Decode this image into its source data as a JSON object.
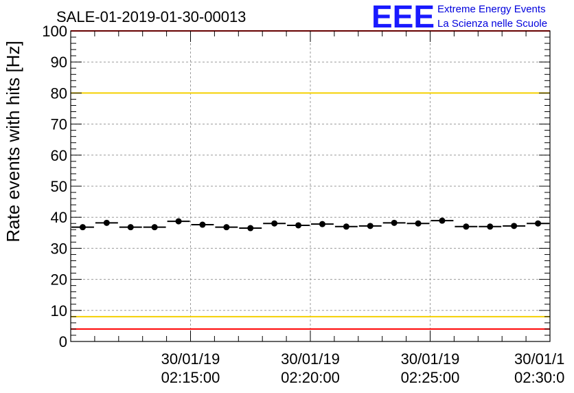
{
  "chart_data": {
    "type": "scatter",
    "title": "SALE-01-2019-01-30-00013",
    "xlabel": "",
    "ylabel": "Rate events with hits [Hz]",
    "ylim": [
      0,
      100
    ],
    "yticks": [
      "0",
      "10",
      "20",
      "30",
      "40",
      "50",
      "60",
      "70",
      "80",
      "90",
      "100"
    ],
    "x_range_minutes": [
      0,
      20
    ],
    "xtick_labels": [
      {
        "date": "30/01/19",
        "time": "02:15:00",
        "minute": 5
      },
      {
        "date": "30/01/19",
        "time": "02:20:00",
        "minute": 10
      },
      {
        "date": "30/01/19",
        "time": "02:25:00",
        "minute": 15
      },
      {
        "date": "30/01/1",
        "time": "02:30:0",
        "minute": 20
      }
    ],
    "bin_width_minutes": 1,
    "series": [
      {
        "name": "rate",
        "x_minutes": [
          0.5,
          1.5,
          2.5,
          3.5,
          4.5,
          5.5,
          6.5,
          7.5,
          8.5,
          9.5,
          10.5,
          11.5,
          12.5,
          13.5,
          14.5,
          15.5,
          16.5,
          17.5,
          18.5,
          19.5
        ],
        "values": [
          36.8,
          38.2,
          36.8,
          36.8,
          38.7,
          37.6,
          36.8,
          36.5,
          38.0,
          37.4,
          37.8,
          37.0,
          37.2,
          38.2,
          38.0,
          38.9,
          37.0,
          37.0,
          37.2,
          38.0
        ]
      }
    ],
    "reference_lines": [
      {
        "name": "upper-red-limit",
        "value": 100,
        "color": "#ff0000"
      },
      {
        "name": "upper-yellow-limit",
        "value": 80,
        "color": "#f5d000"
      },
      {
        "name": "lower-yellow-limit",
        "value": 8,
        "color": "#f5d000"
      },
      {
        "name": "lower-red-limit",
        "value": 4,
        "color": "#ff0000"
      }
    ],
    "grid": true
  },
  "logo": {
    "mark": "EEE",
    "line1": "Extreme Energy Events",
    "line2": "La Scienza nelle Scuole",
    "color": "#0000dd"
  }
}
